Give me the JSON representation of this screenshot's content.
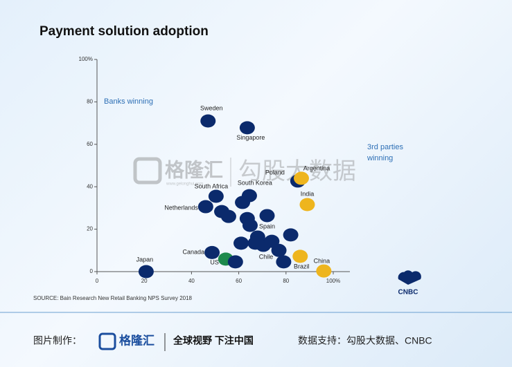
{
  "chart_data": {
    "type": "scatter",
    "title": "Payment solution adoption",
    "annotations": [
      "Banks winning",
      "3rd parties",
      "winning"
    ],
    "source": "SOURCE: Bain Research New Retail Banking NPS Survey 2018",
    "xlim": [
      0,
      100
    ],
    "ylim": [
      0,
      100
    ],
    "xticks": [
      0,
      20,
      40,
      60,
      80,
      {
        "value": 100,
        "label": "100%"
      }
    ],
    "yticks": [
      0,
      20,
      40,
      60,
      80,
      {
        "value": 100,
        "label": "100%"
      }
    ],
    "colors": {
      "bank": "#0b2a6c",
      "third": "#eeb51e",
      "us": "#1d8a4c"
    },
    "points": [
      {
        "label": "Sweden",
        "x": 47,
        "y": 71,
        "group": "bank"
      },
      {
        "label": "Singapore",
        "x": 63.6,
        "y": 67.8,
        "group": "bank"
      },
      {
        "label": "Poland",
        "x": 85,
        "y": 42.7,
        "group": "bank"
      },
      {
        "label": "Argentina",
        "x": 86.5,
        "y": 44,
        "group": "third"
      },
      {
        "label": "India",
        "x": 89,
        "y": 31.6,
        "group": "third"
      },
      {
        "label": "South Africa",
        "x": 50.4,
        "y": 35.5,
        "group": "bank"
      },
      {
        "label": "South Korea",
        "x": 64.5,
        "y": 35.8,
        "group": "bank"
      },
      {
        "label": "Netherlands",
        "x": 46,
        "y": 30.6,
        "group": "bank"
      },
      {
        "label": "Spain",
        "x": 72,
        "y": 26.4,
        "group": "bank"
      },
      {
        "label": "Canada",
        "x": 48.7,
        "y": 9,
        "group": "bank"
      },
      {
        "label": "US",
        "x": 54.5,
        "y": 5.9,
        "group": "us"
      },
      {
        "label": "Chile",
        "x": 70.4,
        "y": 12.4,
        "group": "bank"
      },
      {
        "label": "Brazil",
        "x": 86,
        "y": 7.2,
        "group": "third"
      },
      {
        "label": "China",
        "x": 96,
        "y": 0.3,
        "group": "third"
      },
      {
        "label": "Japan",
        "x": 20.8,
        "y": 0,
        "group": "bank"
      },
      {
        "label": null,
        "x": 61.6,
        "y": 32.6,
        "group": "bank"
      },
      {
        "label": null,
        "x": 52.8,
        "y": 28.3,
        "group": "bank"
      },
      {
        "label": null,
        "x": 55.7,
        "y": 26,
        "group": "bank"
      },
      {
        "label": null,
        "x": 63.6,
        "y": 25,
        "group": "bank"
      },
      {
        "label": null,
        "x": 64.8,
        "y": 21.8,
        "group": "bank"
      },
      {
        "label": null,
        "x": 82,
        "y": 17.3,
        "group": "bank"
      },
      {
        "label": null,
        "x": 68,
        "y": 16.3,
        "group": "bank"
      },
      {
        "label": null,
        "x": 61,
        "y": 13.4,
        "group": "bank"
      },
      {
        "label": null,
        "x": 67,
        "y": 13.4,
        "group": "bank"
      },
      {
        "label": null,
        "x": 74,
        "y": 14.3,
        "group": "bank"
      },
      {
        "label": null,
        "x": 77,
        "y": 10,
        "group": "bank"
      },
      {
        "label": null,
        "x": 79,
        "y": 4.6,
        "group": "bank"
      },
      {
        "label": null,
        "x": 58.6,
        "y": 4.6,
        "group": "bank"
      }
    ]
  },
  "logo": "CNBC",
  "watermark": {
    "brand": "格隆汇",
    "url": "www.gelonghui.com",
    "partner": "勾股大数据"
  },
  "footer": {
    "made_by": "图片制作：",
    "brand": "格隆汇",
    "slogan": "全球视野 下注中国",
    "data_support": "数据支持：勾股大数据、CNBC"
  }
}
